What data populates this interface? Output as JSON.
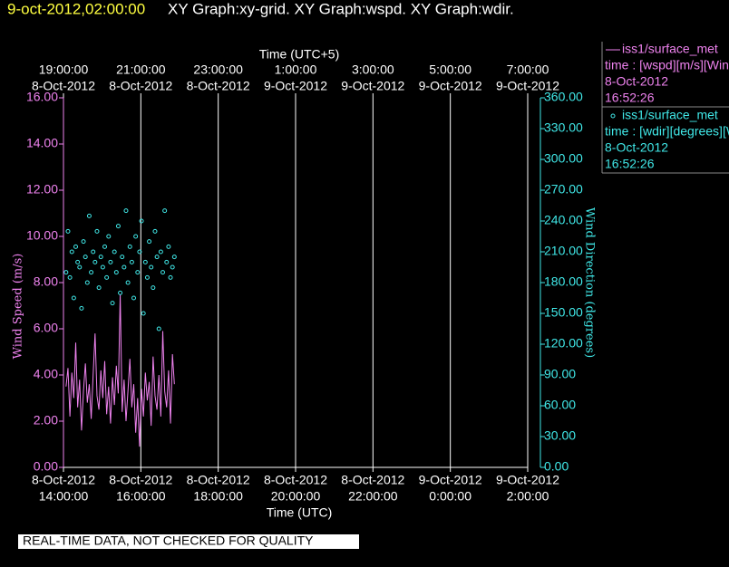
{
  "chart_data": {
    "type": "line",
    "header": {
      "time": "9-oct-2012,02:00:00",
      "graphs": "XY Graph:xy-grid.  XY Graph:wspd.  XY Graph:wdir."
    },
    "footer": "REAL-TIME DATA, NOT CHECKED FOR QUALITY",
    "xlabel": "Time (UTC)",
    "x2label": "Time (UTC+5)",
    "ylabel": "Wind Speed (m/s)",
    "y2label": "Wind Direction (degrees)",
    "grid": true,
    "legend": "right",
    "xlim": [
      "2012-10-08T14:00",
      "2012-10-09T02:00"
    ],
    "xticks": [
      {
        "value": "2012-10-08T14:00",
        "label": [
          "8-Oct-2012",
          "14:00:00"
        ]
      },
      {
        "value": "2012-10-08T16:00",
        "label": [
          "8-Oct-2012",
          "16:00:00"
        ]
      },
      {
        "value": "2012-10-08T18:00",
        "label": [
          "8-Oct-2012",
          "18:00:00"
        ]
      },
      {
        "value": "2012-10-08T20:00",
        "label": [
          "8-Oct-2012",
          "20:00:00"
        ]
      },
      {
        "value": "2012-10-08T22:00",
        "label": [
          "8-Oct-2012",
          "22:00:00"
        ]
      },
      {
        "value": "2012-10-09T00:00",
        "label": [
          "9-Oct-2012",
          "0:00:00"
        ]
      },
      {
        "value": "2012-10-09T02:00",
        "label": [
          "9-Oct-2012",
          "2:00:00"
        ]
      }
    ],
    "x2ticks": [
      {
        "value": "2012-10-08T14:00",
        "label": [
          "19:00:00",
          "8-Oct-2012"
        ]
      },
      {
        "value": "2012-10-08T16:00",
        "label": [
          "21:00:00",
          "8-Oct-2012"
        ]
      },
      {
        "value": "2012-10-08T18:00",
        "label": [
          "23:00:00",
          "8-Oct-2012"
        ]
      },
      {
        "value": "2012-10-08T20:00",
        "label": [
          "1:00:00",
          "9-Oct-2012"
        ]
      },
      {
        "value": "2012-10-08T22:00",
        "label": [
          "3:00:00",
          "9-Oct-2012"
        ]
      },
      {
        "value": "2012-10-09T00:00",
        "label": [
          "5:00:00",
          "9-Oct-2012"
        ]
      },
      {
        "value": "2012-10-09T02:00",
        "label": [
          "7:00:00",
          "9-Oct-2012"
        ]
      }
    ],
    "ylim": [
      0,
      16
    ],
    "yticks": [
      {
        "value": 0,
        "label": "0.00"
      },
      {
        "value": 2,
        "label": "2.00"
      },
      {
        "value": 4,
        "label": "4.00"
      },
      {
        "value": 6,
        "label": "6.00"
      },
      {
        "value": 8,
        "label": "8.00"
      },
      {
        "value": 10,
        "label": "10.00"
      },
      {
        "value": 12,
        "label": "12.00"
      },
      {
        "value": 14,
        "label": "14.00"
      },
      {
        "value": 16,
        "label": "16.00"
      }
    ],
    "y2lim": [
      0,
      360
    ],
    "y2ticks": [
      {
        "value": 0,
        "label": "0.00"
      },
      {
        "value": 30,
        "label": "30.00"
      },
      {
        "value": 60,
        "label": "60.00"
      },
      {
        "value": 90,
        "label": "90.00"
      },
      {
        "value": 120,
        "label": "120.00"
      },
      {
        "value": 150,
        "label": "150.00"
      },
      {
        "value": 180,
        "label": "180.00"
      },
      {
        "value": 210,
        "label": "210.00"
      },
      {
        "value": 240,
        "label": "240.00"
      },
      {
        "value": 270,
        "label": "270.00"
      },
      {
        "value": 300,
        "label": "300.00"
      },
      {
        "value": 330,
        "label": "330.00"
      },
      {
        "value": 360,
        "label": "360.00"
      }
    ],
    "x": [
      "2012-10-08T14:04",
      "2012-10-08T14:07",
      "2012-10-08T14:10",
      "2012-10-08T14:13",
      "2012-10-08T14:16",
      "2012-10-08T14:19",
      "2012-10-08T14:22",
      "2012-10-08T14:25",
      "2012-10-08T14:28",
      "2012-10-08T14:31",
      "2012-10-08T14:34",
      "2012-10-08T14:37",
      "2012-10-08T14:40",
      "2012-10-08T14:43",
      "2012-10-08T14:46",
      "2012-10-08T14:49",
      "2012-10-08T14:52",
      "2012-10-08T14:55",
      "2012-10-08T14:58",
      "2012-10-08T15:01",
      "2012-10-08T15:04",
      "2012-10-08T15:07",
      "2012-10-08T15:10",
      "2012-10-08T15:13",
      "2012-10-08T15:16",
      "2012-10-08T15:19",
      "2012-10-08T15:22",
      "2012-10-08T15:25",
      "2012-10-08T15:28",
      "2012-10-08T15:31",
      "2012-10-08T15:34",
      "2012-10-08T15:37",
      "2012-10-08T15:40",
      "2012-10-08T15:43",
      "2012-10-08T15:46",
      "2012-10-08T15:49",
      "2012-10-08T15:52",
      "2012-10-08T15:55",
      "2012-10-08T15:58",
      "2012-10-08T16:01",
      "2012-10-08T16:04",
      "2012-10-08T16:07",
      "2012-10-08T16:10",
      "2012-10-08T16:13",
      "2012-10-08T16:16",
      "2012-10-08T16:19",
      "2012-10-08T16:22",
      "2012-10-08T16:25",
      "2012-10-08T16:28",
      "2012-10-08T16:31",
      "2012-10-08T16:34",
      "2012-10-08T16:37",
      "2012-10-08T16:40",
      "2012-10-08T16:43",
      "2012-10-08T16:46",
      "2012-10-08T16:49",
      "2012-10-08T16:52"
    ],
    "series": [
      {
        "name": "iss1/surface_met",
        "type": "line",
        "color": "#ee82ee",
        "legend_lines": [
          "time : [wspd][m/s][Wind",
          "8-Oct-2012",
          "16:52:26"
        ],
        "values": [
          3.5,
          4.3,
          2.2,
          4.1,
          3.0,
          5.4,
          2.6,
          3.8,
          1.6,
          3.3,
          4.5,
          2.8,
          3.6,
          2.1,
          4.0,
          5.8,
          3.1,
          2.5,
          4.2,
          3.0,
          4.6,
          2.3,
          3.5,
          1.9,
          3.9,
          2.7,
          4.4,
          3.2,
          7.5,
          2.4,
          3.8,
          2.0,
          3.3,
          4.7,
          2.6,
          3.6,
          1.5,
          3.0,
          0.9,
          3.4,
          2.2,
          4.1,
          2.9,
          3.7,
          1.8,
          4.8,
          3.1,
          2.5,
          4.0,
          2.2,
          5.9,
          3.3,
          2.6,
          4.2,
          1.9,
          4.9,
          3.6
        ]
      },
      {
        "name": "iss1/surface_met",
        "type": "scatter",
        "axis": "y2",
        "color": "#40e8e8",
        "legend_lines": [
          "time : [wdir][degrees][W",
          "8-Oct-2012",
          "16:52:26"
        ],
        "values": [
          190,
          230,
          185,
          210,
          165,
          215,
          200,
          195,
          155,
          220,
          205,
          180,
          245,
          190,
          210,
          200,
          230,
          175,
          205,
          195,
          215,
          185,
          225,
          200,
          160,
          210,
          190,
          235,
          170,
          205,
          195,
          250,
          180,
          215,
          200,
          165,
          225,
          190,
          210,
          240,
          150,
          200,
          185,
          220,
          195,
          175,
          230,
          205,
          135,
          210,
          190,
          250,
          200,
          215,
          185,
          195,
          205
        ]
      }
    ]
  }
}
